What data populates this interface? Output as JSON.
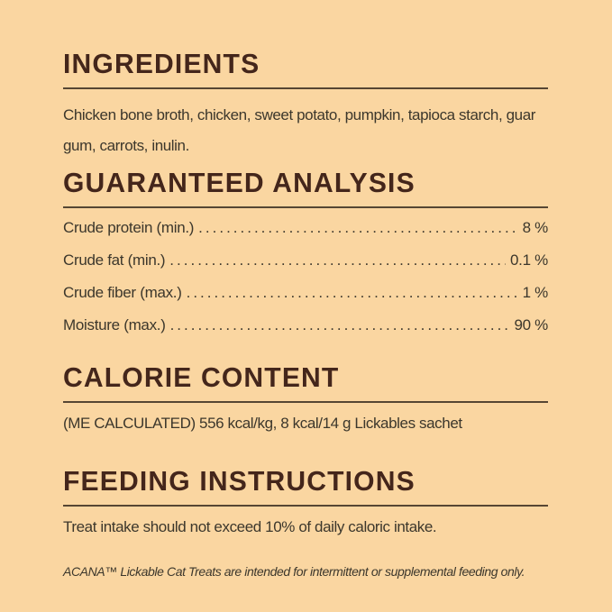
{
  "page": {
    "background_color": "#FAD6A1",
    "heading_color": "#44261B",
    "text_color": "#3C372C",
    "rule_color": "#564633"
  },
  "sections": {
    "ingredients": {
      "title": "INGREDIENTS",
      "body": "Chicken bone broth, chicken, sweet potato, pumpkin, tapioca starch, guar gum, carrots, inulin."
    },
    "guaranteed_analysis": {
      "title": "GUARANTEED ANALYSIS",
      "rows": [
        {
          "label": "Crude protein (min.)",
          "value": "8 %"
        },
        {
          "label": "Crude fat (min.)",
          "value": "0.1 %"
        },
        {
          "label": "Crude fiber (max.)",
          "value": "1 %"
        },
        {
          "label": "Moisture (max.)",
          "value": "90 %"
        }
      ]
    },
    "calorie_content": {
      "title": "CALORIE CONTENT",
      "body": "(ME CALCULATED) 556 kcal/kg, 8 kcal/14 g Lickables sachet"
    },
    "feeding_instructions": {
      "title": "FEEDING INSTRUCTIONS",
      "body": "Treat intake should not exceed 10% of daily caloric intake.",
      "footnote": "ACANA™ Lickable Cat Treats are intended for intermittent or supplemental feeding only."
    }
  }
}
